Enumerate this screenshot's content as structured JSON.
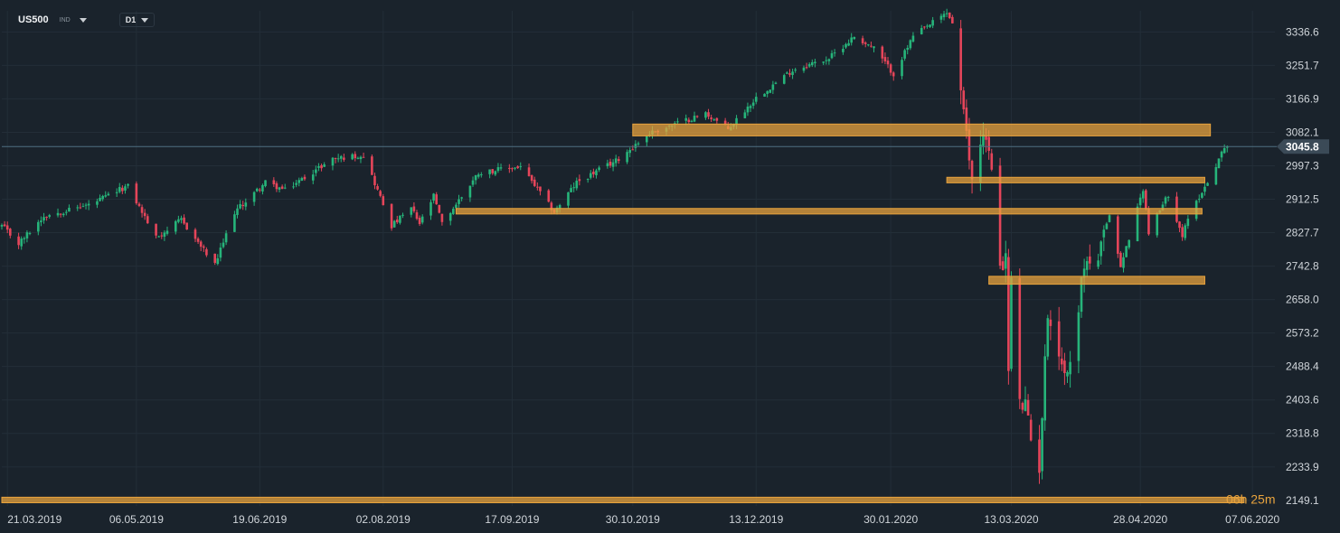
{
  "toolbar": {
    "symbol": "US500",
    "instrument_class": "IND",
    "timeframe": "D1"
  },
  "countdown": {
    "hours": "06",
    "h_unit": "h",
    "minutes": "25",
    "m_unit": "m"
  },
  "colors": {
    "background": "#1a232c",
    "up": "#26b47a",
    "down": "#e5455a",
    "zone": "#e8a33d",
    "grid": "#232e38"
  },
  "chart_data": {
    "type": "candlestick",
    "title": "",
    "symbol": "US500",
    "timeframe": "D1",
    "y_axis": {
      "ticks": [
        "3336.6",
        "3251.7",
        "3166.9",
        "3082.1",
        "2997.3",
        "2912.5",
        "2827.7",
        "2742.8",
        "2658.0",
        "2573.2",
        "2488.4",
        "2403.6",
        "2318.8",
        "2233.9",
        "2149.1"
      ],
      "range": [
        2135,
        3390
      ]
    },
    "x_axis": {
      "ticks": [
        "21.03.2019",
        "06.05.2019",
        "19.06.2019",
        "02.08.2019",
        "17.09.2019",
        "30.10.2019",
        "13.12.2019",
        "30.01.2020",
        "13.03.2020",
        "28.04.2020",
        "07.06.2020"
      ],
      "range": [
        "2019-03-19",
        "2020-06-15"
      ]
    },
    "current_price": {
      "value": 3045.8,
      "label": "3045.8"
    },
    "support_resistance_zones": [
      {
        "from": "2019-10-30",
        "to": "2020-05-23",
        "low": 3073,
        "high": 3103
      },
      {
        "from": "2020-02-19",
        "to": "2020-05-21",
        "low": 2954,
        "high": 2968
      },
      {
        "from": "2019-08-28",
        "to": "2020-05-20",
        "low": 2875,
        "high": 2889
      },
      {
        "from": "2020-03-05",
        "to": "2020-05-21",
        "low": 2697,
        "high": 2717
      },
      {
        "from": "2019-03-19",
        "to": "2020-06-04",
        "low": 2143,
        "high": 2157
      }
    ],
    "price_path": [
      [
        "2019-03-19",
        2845
      ],
      [
        "2019-03-25",
        2800
      ],
      [
        "2019-04-03",
        2870
      ],
      [
        "2019-04-20",
        2900
      ],
      [
        "2019-05-01",
        2940
      ],
      [
        "2019-05-03",
        2945
      ],
      [
        "2019-05-13",
        2815
      ],
      [
        "2019-05-22",
        2860
      ],
      [
        "2019-06-03",
        2745
      ],
      [
        "2019-06-10",
        2880
      ],
      [
        "2019-06-21",
        2955
      ],
      [
        "2019-06-28",
        2935
      ],
      [
        "2019-07-15",
        3015
      ],
      [
        "2019-07-26",
        3025
      ],
      [
        "2019-08-05",
        2845
      ],
      [
        "2019-08-12",
        2890
      ],
      [
        "2019-08-15",
        2850
      ],
      [
        "2019-08-20",
        2920
      ],
      [
        "2019-08-23",
        2850
      ],
      [
        "2019-09-05",
        2980
      ],
      [
        "2019-09-20",
        2995
      ],
      [
        "2019-10-02",
        2880
      ],
      [
        "2019-10-10",
        2955
      ],
      [
        "2019-10-24",
        3010
      ],
      [
        "2019-11-05",
        3080
      ],
      [
        "2019-11-25",
        3130
      ],
      [
        "2019-12-03",
        3090
      ],
      [
        "2019-12-13",
        3170
      ],
      [
        "2019-12-26",
        3240
      ],
      [
        "2020-01-08",
        3270
      ],
      [
        "2020-01-17",
        3325
      ],
      [
        "2020-01-24",
        3295
      ],
      [
        "2020-01-31",
        3230
      ],
      [
        "2020-02-07",
        3325
      ],
      [
        "2020-02-19",
        3385
      ],
      [
        "2020-02-21",
        3360
      ],
      [
        "2020-02-25",
        3125
      ],
      [
        "2020-02-28",
        2960
      ],
      [
        "2020-03-03",
        3090
      ],
      [
        "2020-03-05",
        3030
      ],
      [
        "2020-03-06",
        2975
      ],
      [
        "2020-03-09",
        2750
      ],
      [
        "2020-03-11",
        2760
      ],
      [
        "2020-03-12",
        2480
      ],
      [
        "2020-03-13",
        2710
      ],
      [
        "2020-03-16",
        2390
      ],
      [
        "2020-03-18",
        2390
      ],
      [
        "2020-03-20",
        2300
      ],
      [
        "2020-03-23",
        2235
      ],
      [
        "2020-03-26",
        2630
      ],
      [
        "2020-04-01",
        2470
      ],
      [
        "2020-04-03",
        2490
      ],
      [
        "2020-04-08",
        2750
      ],
      [
        "2020-04-13",
        2760
      ],
      [
        "2020-04-17",
        2875
      ],
      [
        "2020-04-21",
        2740
      ],
      [
        "2020-04-29",
        2940
      ],
      [
        "2020-05-01",
        2830
      ],
      [
        "2020-05-08",
        2925
      ],
      [
        "2020-05-13",
        2820
      ],
      [
        "2020-05-15",
        2860
      ],
      [
        "2020-05-19",
        2920
      ],
      [
        "2020-05-22",
        2955
      ],
      [
        "2020-05-27",
        3030
      ],
      [
        "2020-05-29",
        3045.8
      ]
    ]
  }
}
